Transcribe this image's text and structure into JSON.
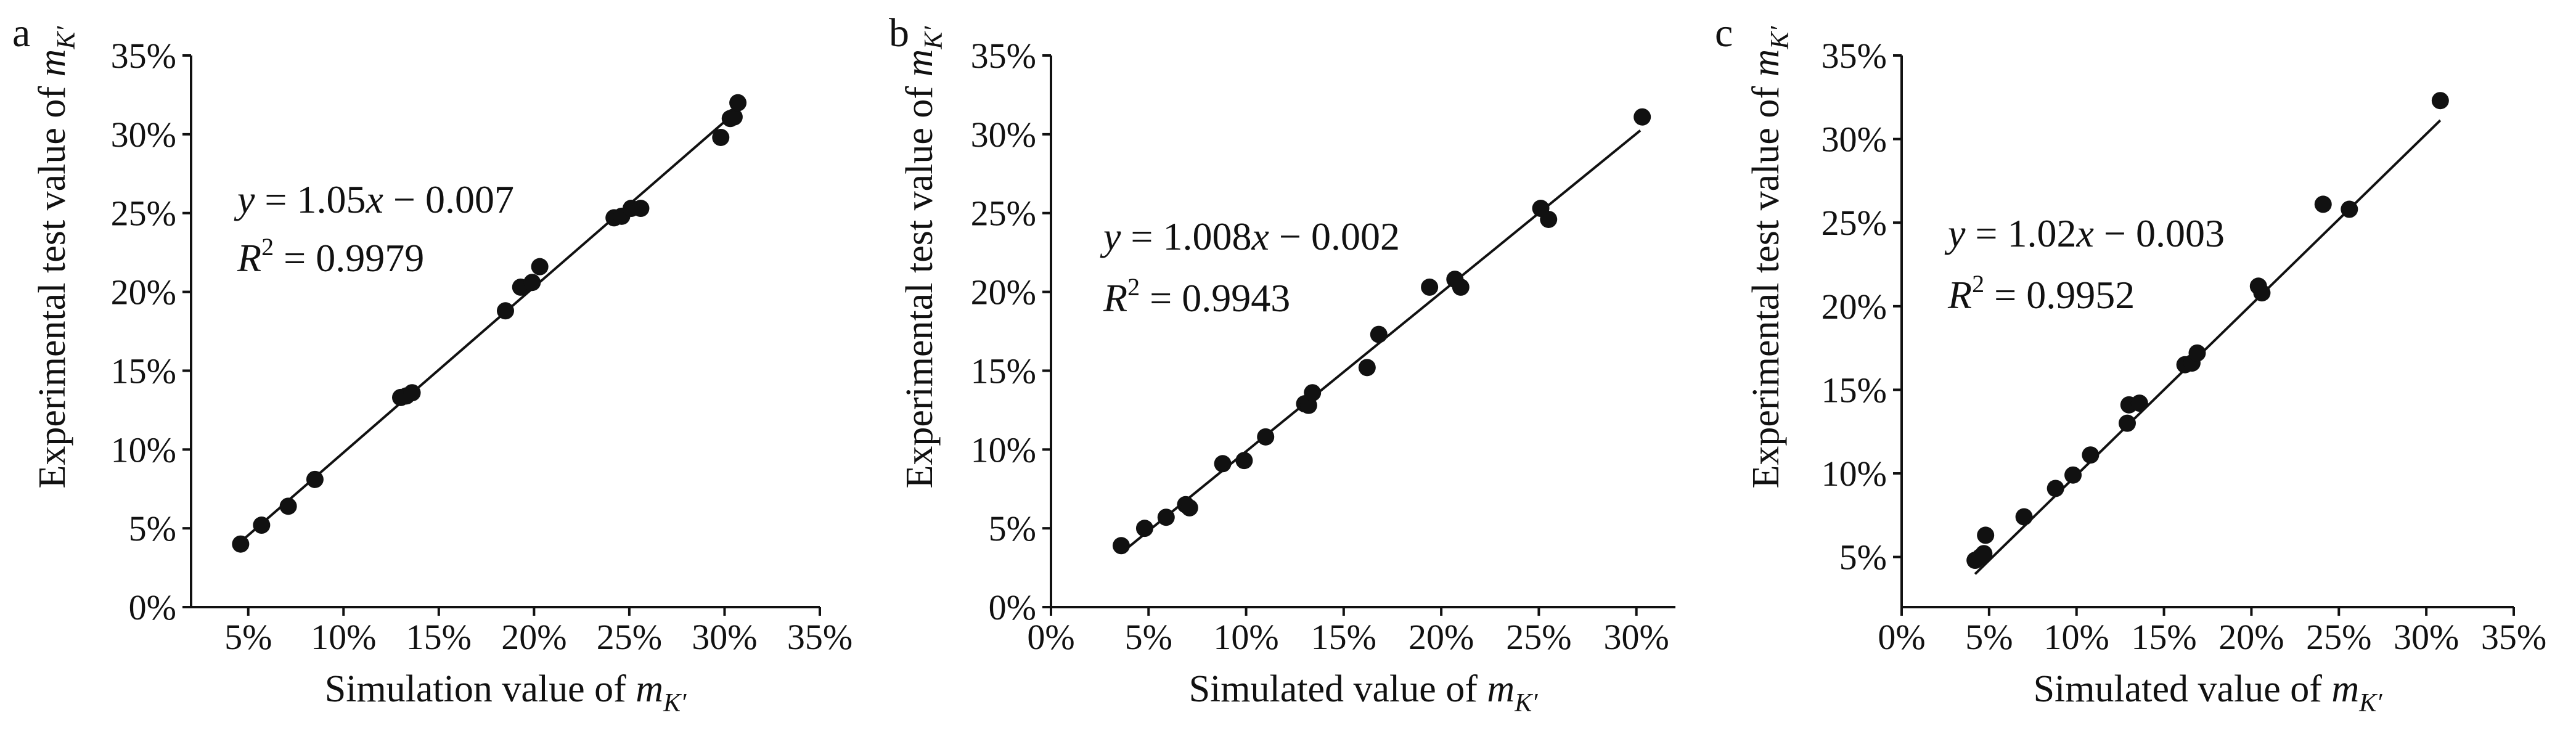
{
  "chart_data": [
    {
      "type": "scatter",
      "panel": "a",
      "xlabel_prefix": "Simulation value of ",
      "ylabel_prefix": "Experimental test value of ",
      "var_main": "m",
      "var_sub": "K′",
      "xlim": [
        2,
        35
      ],
      "ylim": [
        0,
        35
      ],
      "xticks": [
        5,
        10,
        15,
        20,
        25,
        30,
        35
      ],
      "yticks": [
        0,
        5,
        10,
        15,
        20,
        25,
        30,
        35
      ],
      "tick_suffix": "%",
      "equation": {
        "y": "y",
        "eq": " = 1.05",
        "x": "x",
        "rest": " − 0.007"
      },
      "r2": {
        "R": "R",
        "sup": "2",
        "rest": " = 0.9979"
      },
      "fit": {
        "x": [
          4.6,
          30.6
        ],
        "y": [
          4.14,
          31.43
        ]
      },
      "points": {
        "x": [
          4.6,
          5.7,
          7.1,
          8.5,
          13.0,
          13.3,
          13.6,
          18.5,
          19.3,
          19.9,
          20.3,
          24.2,
          24.6,
          25.1,
          25.6,
          29.8,
          30.3,
          30.5,
          30.7
        ],
        "y": [
          4.0,
          5.2,
          6.4,
          8.1,
          13.3,
          13.4,
          13.6,
          18.8,
          20.3,
          20.6,
          21.6,
          24.7,
          24.8,
          25.3,
          25.3,
          29.8,
          31.0,
          31.1,
          32.0
        ]
      }
    },
    {
      "type": "scatter",
      "panel": "b",
      "xlabel_prefix": "Simulated value of ",
      "ylabel_prefix": "Experimental test value of ",
      "var_main": "m",
      "var_sub": "K′",
      "xlim": [
        0,
        32
      ],
      "ylim": [
        0,
        35
      ],
      "xticks": [
        0,
        5,
        10,
        15,
        20,
        25,
        30
      ],
      "yticks": [
        0,
        5,
        10,
        15,
        20,
        25,
        30,
        35
      ],
      "tick_suffix": "%",
      "equation": {
        "y": "y",
        "eq": " = 1.008",
        "x": "x",
        "rest": " − 0.002"
      },
      "r2": {
        "R": "R",
        "sup": "2",
        "rest": " = 0.9943"
      },
      "fit": {
        "x": [
          3.6,
          30.2
        ],
        "y": [
          3.43,
          30.24
        ]
      },
      "points": {
        "x": [
          3.6,
          4.8,
          5.9,
          6.9,
          7.1,
          8.8,
          9.9,
          11.0,
          13.0,
          13.2,
          13.4,
          16.2,
          16.8,
          19.4,
          20.7,
          21.0,
          25.1,
          25.5,
          30.3
        ],
        "y": [
          3.9,
          5.0,
          5.7,
          6.5,
          6.3,
          9.1,
          9.3,
          10.8,
          12.9,
          12.8,
          13.6,
          15.2,
          17.3,
          20.3,
          20.8,
          20.3,
          25.3,
          24.6,
          31.1
        ]
      }
    },
    {
      "type": "scatter",
      "panel": "c",
      "xlabel_prefix": "Simulated value of ",
      "ylabel_prefix": "Experimental test value of ",
      "var_main": "m",
      "var_sub": "K′",
      "xlim": [
        0,
        35
      ],
      "ylim": [
        2,
        35
      ],
      "xticks": [
        0,
        5,
        10,
        15,
        20,
        25,
        30,
        35
      ],
      "yticks": [
        5,
        10,
        15,
        20,
        25,
        30,
        35
      ],
      "tick_suffix": "%",
      "equation": {
        "y": "y",
        "eq": " = 1.02",
        "x": "x",
        "rest": " − 0.003"
      },
      "r2": {
        "R": "R",
        "sup": "2",
        "rest": " = 0.9952"
      },
      "fit": {
        "x": [
          4.2,
          30.8
        ],
        "y": [
          3.98,
          31.12
        ]
      },
      "points": {
        "x": [
          4.2,
          4.5,
          4.7,
          4.8,
          7.0,
          8.8,
          9.8,
          10.8,
          12.9,
          13.0,
          13.6,
          16.2,
          16.6,
          16.9,
          20.4,
          20.6,
          24.1,
          25.6,
          30.8
        ],
        "y": [
          4.8,
          5.0,
          5.2,
          6.3,
          7.4,
          9.1,
          9.9,
          11.1,
          13.0,
          14.1,
          14.2,
          16.5,
          16.6,
          17.2,
          21.2,
          20.8,
          26.1,
          25.8,
          32.3
        ]
      }
    }
  ]
}
